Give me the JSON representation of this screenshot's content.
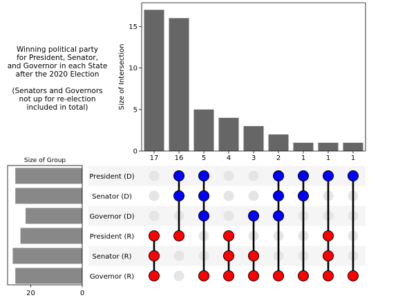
{
  "description_text": "Winning political party\nfor President, Senator,\nand Governor in each State\nafter the 2020 Election\n\n(Senators and Governors\nnot up for re-election\nincluded in total)",
  "colors": {
    "bar": "#666666",
    "group_bar": "#888888",
    "democrat": "#0000ff",
    "republican": "#ff0000",
    "inactive_dot": "#e5e5e5",
    "stripe": "#f5f5f5",
    "connector": "#000000"
  },
  "chart_data": [
    {
      "type": "bar",
      "ylabel": "Size of Intersection",
      "ylim": [
        0,
        17.85
      ],
      "yticks": [
        0,
        5,
        10,
        15
      ],
      "values": [
        17,
        16,
        5,
        4,
        3,
        2,
        1,
        1,
        1
      ],
      "bar_labels": [
        "17",
        "16",
        "5",
        "4",
        "3",
        "2",
        "1",
        "1",
        "1"
      ]
    },
    {
      "type": "bar",
      "orientation": "horizontal",
      "title": "Size of Group",
      "xlim": [
        29,
        0
      ],
      "xticks": [
        20,
        0
      ],
      "categories": [
        "President (D)",
        "Senator (D)",
        "Governor (D)",
        "President (R)",
        "Senator (R)",
        "Governor (R)"
      ],
      "values": [
        26,
        26,
        22,
        24,
        27,
        26
      ]
    },
    {
      "type": "table",
      "rows": [
        "President (D)",
        "Senator (D)",
        "Governor (D)",
        "President (R)",
        "Senator (R)",
        "Governor (R)"
      ],
      "row_colors": [
        "democrat",
        "democrat",
        "democrat",
        "republican",
        "republican",
        "republican"
      ],
      "membership": [
        [
          3,
          4,
          5
        ],
        [
          0,
          1,
          3
        ],
        [
          0,
          1,
          2,
          5
        ],
        [
          3,
          4,
          5
        ],
        [
          2,
          4,
          5
        ],
        [
          0,
          1,
          2,
          5
        ],
        [
          0,
          1,
          5
        ],
        [
          0,
          3,
          4,
          5
        ],
        [
          0,
          5
        ]
      ]
    }
  ]
}
